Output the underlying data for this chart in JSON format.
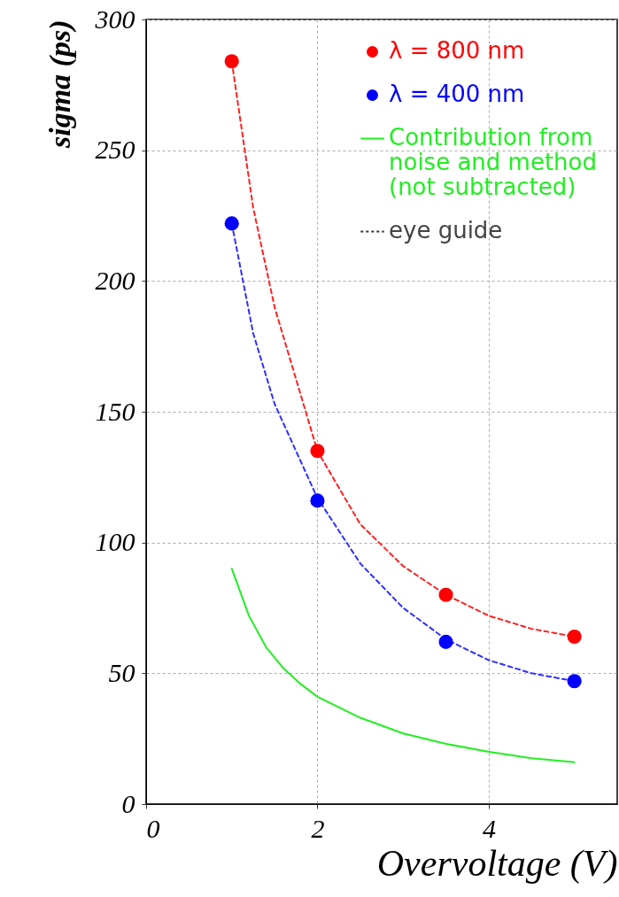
{
  "chart_data": {
    "type": "scatter",
    "xlabel": "Overvoltage (V)",
    "ylabel": "sigma (ps)",
    "xlim": [
      0,
      5.5
    ],
    "xticks": [
      0,
      2,
      4
    ],
    "ylim": [
      0,
      300
    ],
    "yticks": [
      0,
      50,
      100,
      150,
      200,
      250,
      300
    ],
    "grid": true,
    "legend": "top right",
    "annotations": [
      "eye guide"
    ],
    "series": [
      {
        "type": "line",
        "line_style": "dashed",
        "color": "#ff2020",
        "x": [
          1,
          1.25,
          1.5,
          2,
          2.5,
          3,
          3.5,
          4,
          4.5,
          5
        ],
        "values": [
          284,
          228,
          190,
          135,
          107,
          91,
          80,
          72,
          67,
          64
        ]
      },
      {
        "type": "line",
        "line_style": "dashed",
        "color": "#3030ff",
        "x": [
          1,
          1.25,
          1.5,
          2,
          2.5,
          3,
          3.5,
          4,
          4.5,
          5
        ],
        "values": [
          222,
          180,
          153,
          117,
          92,
          75,
          63,
          55,
          50,
          47
        ]
      },
      {
        "name": "λ = 800 nm",
        "marker": "circle",
        "color": "#ff0000",
        "x": [
          1,
          2,
          3.5,
          5
        ],
        "values": [
          284,
          135,
          80,
          64
        ]
      },
      {
        "name": "λ = 400 nm",
        "marker": "circle",
        "color": "#0000ff",
        "x": [
          1,
          2,
          3.5,
          5
        ],
        "values": [
          222,
          116,
          62,
          47
        ]
      },
      {
        "name": "Contribution from noise and method (not subtracted)",
        "type": "line",
        "line_style": "solid",
        "color": "#22ee22",
        "x": [
          1,
          1.2,
          1.4,
          1.6,
          1.8,
          2,
          2.5,
          3,
          3.5,
          4,
          4.5,
          5
        ],
        "values": [
          90,
          72,
          60,
          52,
          46,
          41,
          33,
          27,
          23,
          20,
          17.5,
          16
        ]
      }
    ]
  }
}
